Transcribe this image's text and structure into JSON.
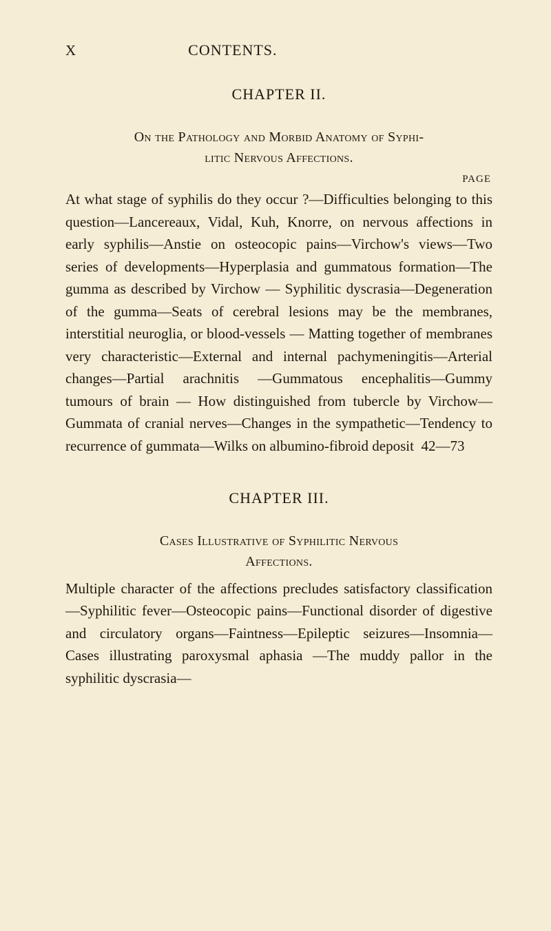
{
  "header": {
    "page_number": "X",
    "title": "CONTENTS."
  },
  "chapter2": {
    "heading": "CHAPTER II.",
    "section_title_line1": "On the Pathology and Morbid Anatomy of Syphi-",
    "section_title_line2": "litic Nervous Affections.",
    "page_label": "PAGE",
    "body": "At what stage of syphilis do they occur ?—Difficulties belonging to this question—Lancereaux, Vidal, Kuh, Knorre, on nervous affections in early syphilis—Anstie on osteocopic pains—Virchow's views—Two series of developments—Hyperplasia and gummatous formation—The gumma as de­scribed by Virchow — Syphilitic dyscrasia—De­generation of the gumma—Seats of cerebral lesions may be the membranes, interstitial neuroglia, or blood-vessels — Matting together of membranes very characteristic—External and internal pachy­meningitis—Arterial changes—Partial arachnitis —Gummatous encephalitis—Gummy tumours of brain — How distinguished from tubercle by Virchow—Gummata of cranial nerves—Changes in the sympathetic—Tendency to recurrence of gummata—Wilks on albumino-fibroid deposit",
    "page_range": "42—73"
  },
  "chapter3": {
    "heading": "CHAPTER III.",
    "section_title_line1": "Cases Illustrative of Syphilitic Nervous",
    "section_title_line2": "Affections.",
    "body": "Multiple character of the affections precludes satisfac­tory classification—Syphilitic fever—Osteocopic pains—Functional disorder of digestive and cir­culatory organs—Faintness—Epileptic seizures—Insomnia—Cases illustrating paroxysmal aphasia —The muddy pallor in the syphilitic dyscrasia—"
  },
  "styling": {
    "background_color": "#f5edd5",
    "text_color": "#201810",
    "body_fontsize": 21,
    "heading_fontsize": 22,
    "page_label_fontsize": 15,
    "line_height": 1.55
  }
}
